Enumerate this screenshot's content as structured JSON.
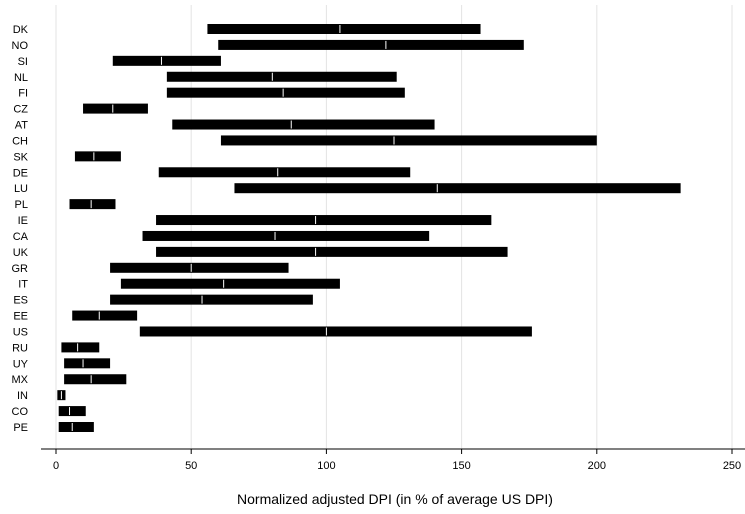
{
  "chart_data": {
    "type": "range-bar",
    "xlabel": "Normalized adjusted DPI (in % of average US DPI)",
    "xlim": [
      0,
      250
    ],
    "xticks": [
      0,
      50,
      100,
      150,
      200,
      250
    ],
    "grid": true,
    "bar_color": "#000000",
    "marker_color": "#ffffff",
    "categories": [
      "DK",
      "NO",
      "SI",
      "NL",
      "FI",
      "CZ",
      "AT",
      "CH",
      "SK",
      "DE",
      "LU",
      "PL",
      "IE",
      "CA",
      "UK",
      "GR",
      "IT",
      "ES",
      "EE",
      "US",
      "RU",
      "UY",
      "MX",
      "IN",
      "CO",
      "PE"
    ],
    "ranges": [
      {
        "low": 56,
        "mid": 105,
        "high": 157
      },
      {
        "low": 60,
        "mid": 122,
        "high": 173
      },
      {
        "low": 21,
        "mid": 39,
        "high": 61
      },
      {
        "low": 41,
        "mid": 80,
        "high": 126
      },
      {
        "low": 41,
        "mid": 84,
        "high": 129
      },
      {
        "low": 10,
        "mid": 21,
        "high": 34
      },
      {
        "low": 43,
        "mid": 87,
        "high": 140
      },
      {
        "low": 61,
        "mid": 125,
        "high": 200
      },
      {
        "low": 7,
        "mid": 14,
        "high": 24
      },
      {
        "low": 38,
        "mid": 82,
        "high": 131
      },
      {
        "low": 66,
        "mid": 141,
        "high": 231
      },
      {
        "low": 5,
        "mid": 13,
        "high": 22
      },
      {
        "low": 37,
        "mid": 96,
        "high": 161
      },
      {
        "low": 32,
        "mid": 81,
        "high": 138
      },
      {
        "low": 37,
        "mid": 96,
        "high": 167
      },
      {
        "low": 20,
        "mid": 50,
        "high": 86
      },
      {
        "low": 24,
        "mid": 62,
        "high": 105
      },
      {
        "low": 20,
        "mid": 54,
        "high": 95
      },
      {
        "low": 6,
        "mid": 16,
        "high": 30
      },
      {
        "low": 31,
        "mid": 100,
        "high": 176
      },
      {
        "low": 2,
        "mid": 8,
        "high": 16
      },
      {
        "low": 3,
        "mid": 10,
        "high": 20
      },
      {
        "low": 3,
        "mid": 13,
        "high": 26
      },
      {
        "low": 0.5,
        "mid": 2,
        "high": 3.5
      },
      {
        "low": 1,
        "mid": 5,
        "high": 11
      },
      {
        "low": 1,
        "mid": 6,
        "high": 14
      }
    ]
  }
}
